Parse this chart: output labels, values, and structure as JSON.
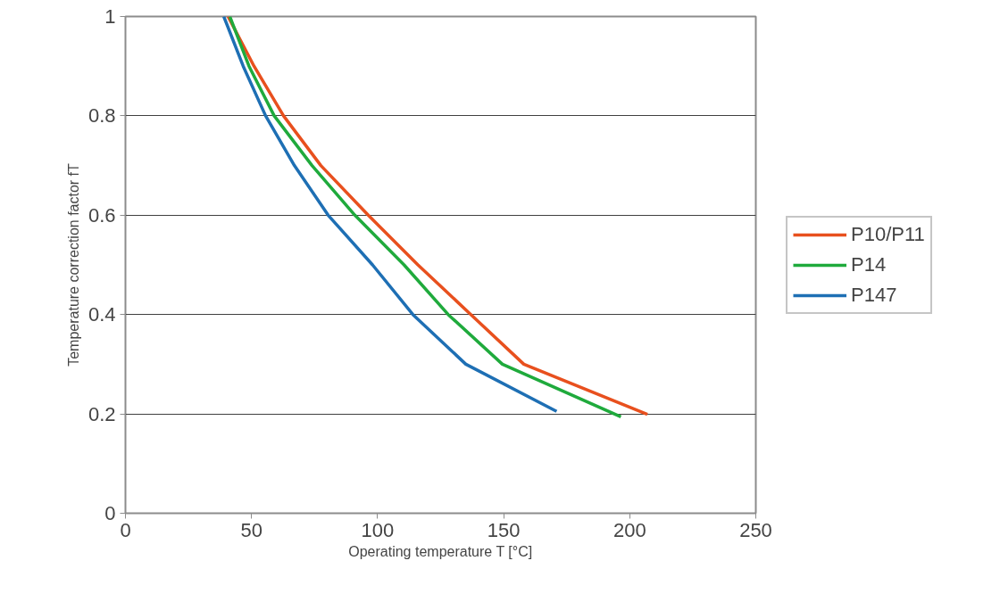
{
  "chart_data": {
    "type": "line",
    "xlabel": "Operating temperature T [°C]",
    "ylabel": "Temperature correction factor fT",
    "xlim": [
      0,
      250
    ],
    "ylim": [
      0,
      1
    ],
    "xticks": [
      0,
      50,
      100,
      150,
      200,
      250
    ],
    "yticks": [
      0,
      0.2,
      0.4,
      0.6,
      0.8,
      1
    ],
    "grid": "y",
    "legend": "right",
    "marker": "none",
    "line_style": "solid",
    "series": [
      {
        "name": "P10/P11",
        "color": "#e8501e",
        "x": [
          40.7,
          51,
          62.7,
          77.5,
          96.3,
          116,
          137,
          158,
          207
        ],
        "values": [
          1,
          0.9,
          0.8,
          0.7,
          0.6,
          0.5,
          0.4,
          0.3,
          0.199
        ]
      },
      {
        "name": "P14",
        "color": "#1faa3c",
        "x": [
          41.4,
          49,
          59,
          74,
          91,
          110.5,
          128,
          149.5,
          196.5
        ],
        "values": [
          1,
          0.9,
          0.8,
          0.7,
          0.6,
          0.5,
          0.4,
          0.3,
          0.194
        ]
      },
      {
        "name": "P147",
        "color": "#1e6fb4",
        "x": [
          39,
          46.7,
          55.6,
          67,
          80.4,
          98,
          114,
          135,
          171
        ],
        "values": [
          1,
          0.9,
          0.8,
          0.7,
          0.6,
          0.5,
          0.4,
          0.3,
          0.205
        ]
      }
    ]
  }
}
